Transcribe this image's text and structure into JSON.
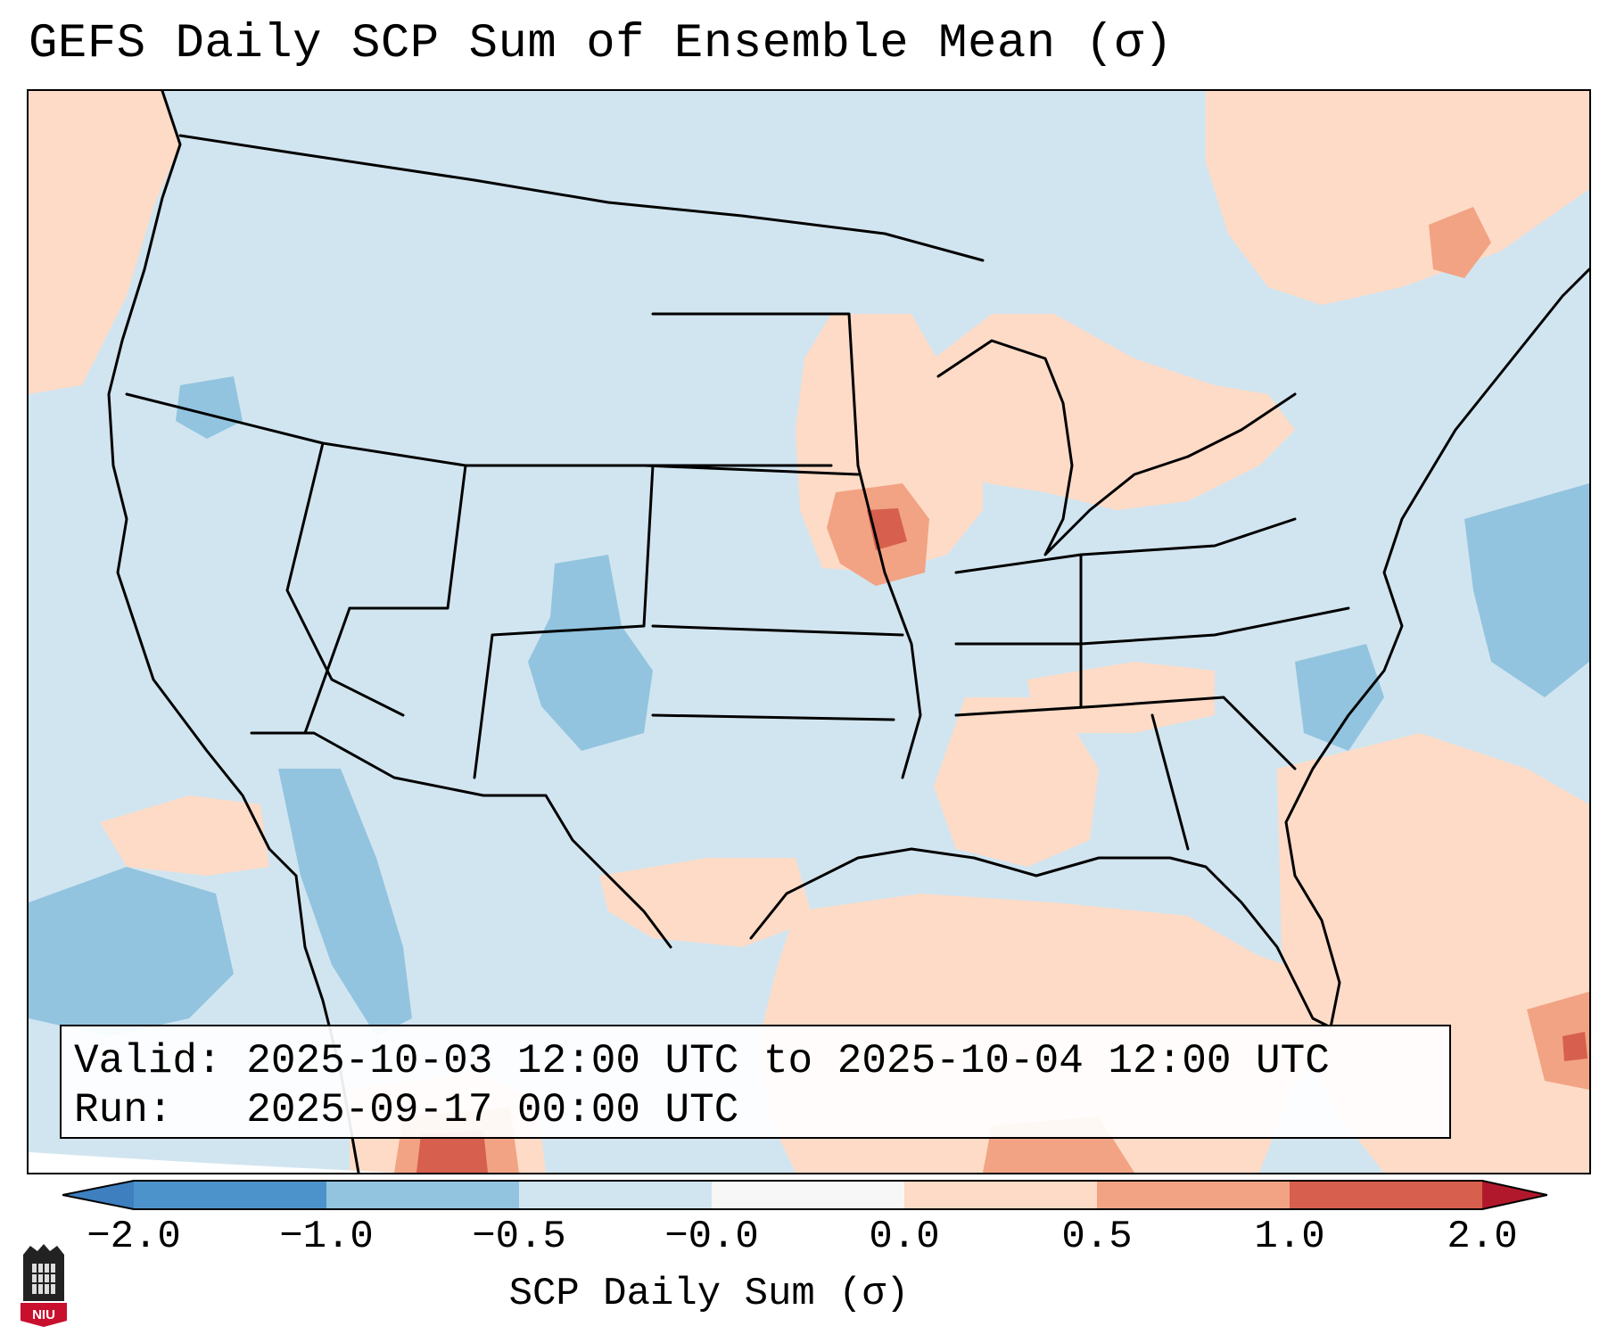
{
  "title": "GEFS Daily SCP Sum of Ensemble Mean (σ)",
  "info": {
    "valid_label": "Valid:",
    "valid_value": "2025-10-03 12:00 UTC to 2025-10-04 12:00 UTC",
    "run_label": "Run:",
    "run_value": "2025-09-17 00:00 UTC"
  },
  "colorbar": {
    "label": "SCP Daily Sum (σ)",
    "ticks": [
      "−2.0",
      "−1.0",
      "−0.5",
      "−0.0",
      "0.0",
      "0.5",
      "1.0",
      "2.0"
    ],
    "colors": {
      "below_min": "#3d7fbf",
      "bin_m2_m1": "#4d93cb",
      "bin_m1_m05": "#92c4df",
      "bin_m05_m0": "#d1e5f0",
      "bin_m0_0": "#f7f7f7",
      "bin_0_05": "#fddbc7",
      "bin_05_1": "#f2a383",
      "bin_1_2": "#d6604d",
      "above_max": "#b2182b"
    }
  },
  "logo": {
    "text": "NIU"
  }
}
